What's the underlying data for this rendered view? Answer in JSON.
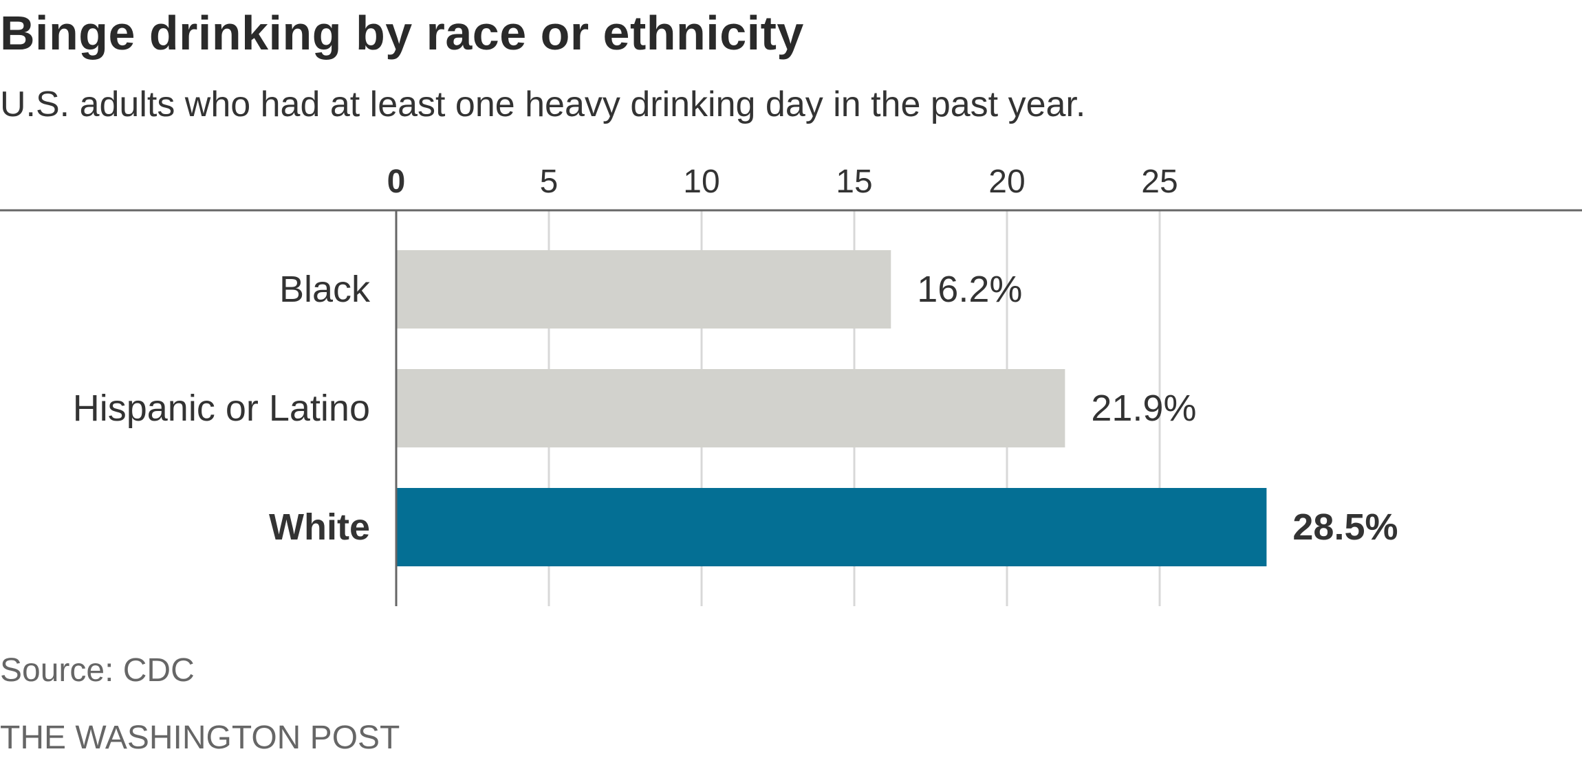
{
  "title": "Binge drinking by race or ethnicity",
  "subtitle": "U.S. adults who had at least one heavy drinking day in the past year.",
  "source": "Source: CDC",
  "credit": "THE WASHINGTON POST",
  "colors": {
    "bar_default": "#d2d2cd",
    "bar_highlight": "#046f94",
    "gridline": "#d8d8d8",
    "axis": "#666666",
    "text": "#333333"
  },
  "chart_data": {
    "type": "bar",
    "orientation": "horizontal",
    "title": "Binge drinking by race or ethnicity",
    "xlabel": "",
    "ylabel": "",
    "xlim": [
      0,
      30
    ],
    "ticks": [
      0,
      5,
      10,
      15,
      20,
      25
    ],
    "tick_labels": [
      "0",
      "5",
      "10",
      "15",
      "20",
      "25"
    ],
    "categories": [
      "Black",
      "Hispanic or Latino",
      "White"
    ],
    "values": [
      16.2,
      21.9,
      28.5
    ],
    "value_labels": [
      "16.2%",
      "21.9%",
      "28.5%"
    ],
    "highlight": [
      false,
      false,
      true
    ],
    "grid": true
  }
}
